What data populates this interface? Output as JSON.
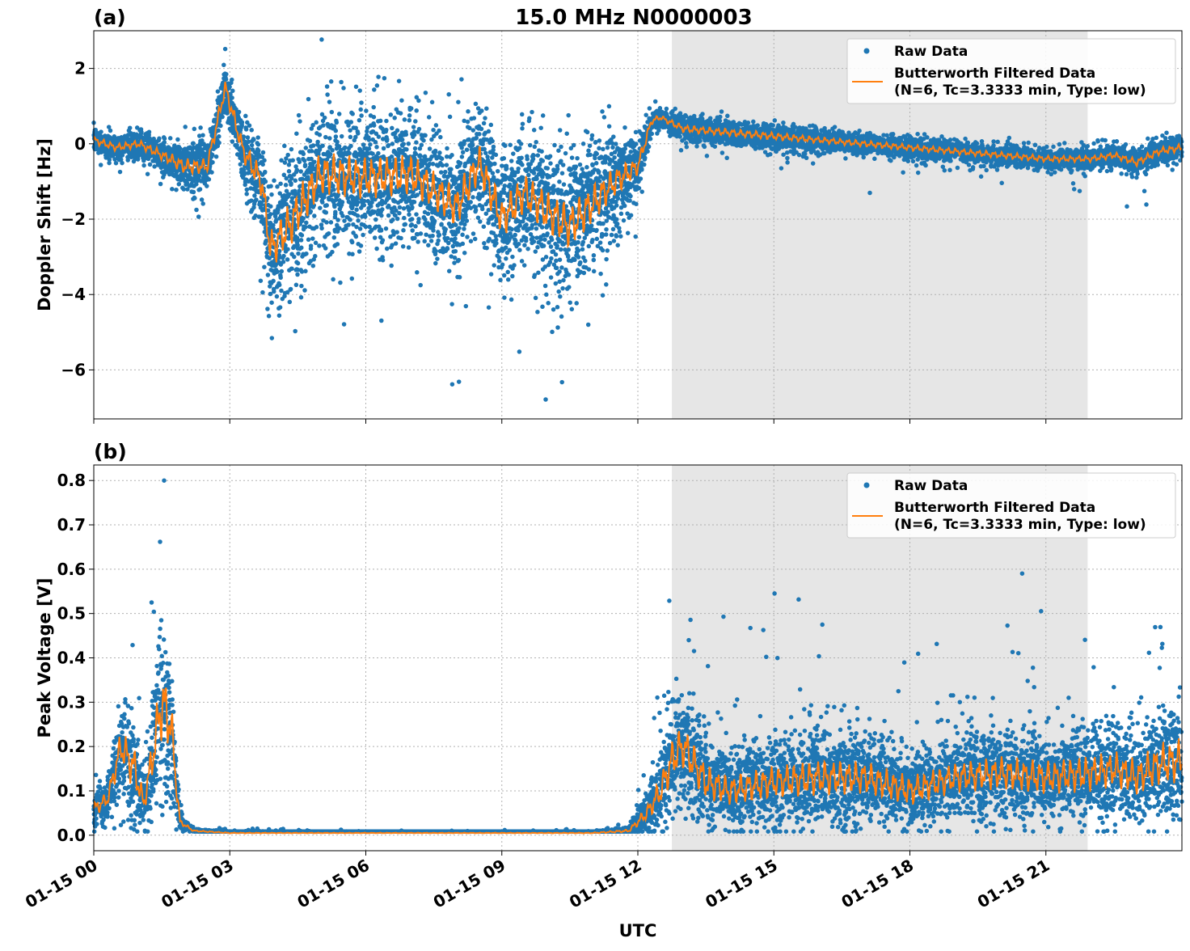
{
  "chart_data": [
    {
      "type": "scatter",
      "panel_label": "(a)",
      "title": "15.0 MHz N0000003",
      "xlabel": "",
      "ylabel": "Doppler Shift [Hz]",
      "ylim": [
        -7.3,
        3.0
      ],
      "yticks": [
        -6,
        -4,
        -2,
        0,
        2
      ],
      "ytick_labels": [
        "−6",
        "−4",
        "−2",
        "0",
        "2"
      ],
      "xlim": [
        0,
        24
      ],
      "shaded_region_hours": [
        12.75,
        21.92
      ],
      "grid": true,
      "legend_placement": "top-right",
      "series": [
        {
          "name": "Raw Data",
          "kind": "points",
          "color": "#1f77b4"
        },
        {
          "name": "Butterworth Filtered Data\n(N=6, Tc=3.3333 min, Type: low)",
          "kind": "line",
          "color": "#ff7f0e"
        }
      ],
      "legend": [
        "Raw Data",
        "Butterworth Filtered Data",
        "(N=6, Tc=3.3333 min, Type: low)"
      ],
      "envelope": {
        "hours": [
          0,
          0.5,
          1.0,
          1.5,
          2.0,
          2.5,
          2.9,
          3.3,
          3.7,
          3.9,
          4.3,
          5.0,
          6.0,
          7.0,
          8.0,
          8.5,
          9.0,
          9.5,
          10.0,
          10.5,
          11.0,
          11.5,
          12.0,
          12.3,
          12.5,
          13.0,
          14.0,
          15.0,
          16.0,
          17.0,
          18.0,
          19.0,
          20.0,
          21.0,
          22.0,
          22.5,
          23.0,
          23.5,
          24.0
        ],
        "center": [
          0.1,
          -0.1,
          0.0,
          -0.3,
          -0.6,
          -0.6,
          1.5,
          -0.2,
          -1.0,
          -2.8,
          -2.2,
          -0.8,
          -0.9,
          -0.8,
          -1.7,
          -0.5,
          -2.0,
          -1.3,
          -1.8,
          -2.2,
          -1.6,
          -1.0,
          -0.6,
          0.6,
          0.7,
          0.4,
          0.3,
          0.2,
          0.1,
          0.0,
          -0.1,
          -0.2,
          -0.3,
          -0.4,
          -0.4,
          -0.3,
          -0.5,
          -0.2,
          -0.1
        ],
        "spread": [
          0.3,
          0.3,
          0.3,
          0.4,
          0.6,
          0.6,
          0.6,
          0.8,
          1.2,
          1.5,
          1.8,
          1.7,
          1.7,
          1.6,
          1.6,
          1.5,
          1.6,
          1.6,
          1.7,
          1.8,
          1.6,
          1.2,
          0.7,
          0.3,
          0.2,
          0.3,
          0.3,
          0.3,
          0.25,
          0.25,
          0.25,
          0.25,
          0.25,
          0.25,
          0.25,
          0.25,
          0.3,
          0.3,
          0.3
        ]
      }
    },
    {
      "type": "scatter",
      "panel_label": "(b)",
      "title": "",
      "xlabel": "UTC",
      "ylabel": "Peak Voltage [V]",
      "ylim": [
        -0.035,
        0.835
      ],
      "yticks": [
        0.0,
        0.1,
        0.2,
        0.3,
        0.4,
        0.5,
        0.6,
        0.7,
        0.8
      ],
      "ytick_labels": [
        "0.0",
        "0.1",
        "0.2",
        "0.3",
        "0.4",
        "0.5",
        "0.6",
        "0.7",
        "0.8"
      ],
      "xlim": [
        0,
        24
      ],
      "xticks_hours": [
        0,
        3,
        6,
        9,
        12,
        15,
        18,
        21
      ],
      "xtick_labels": [
        "01-15 00",
        "01-15 03",
        "01-15 06",
        "01-15 09",
        "01-15 12",
        "01-15 15",
        "01-15 18",
        "01-15 21"
      ],
      "shaded_region_hours": [
        12.75,
        21.92
      ],
      "grid": true,
      "legend_placement": "top-right",
      "series": [
        {
          "name": "Raw Data",
          "kind": "points",
          "color": "#1f77b4"
        },
        {
          "name": "Butterworth Filtered Data\n(N=6, Tc=3.3333 min, Type: low)",
          "kind": "line",
          "color": "#ff7f0e"
        }
      ],
      "legend": [
        "Raw Data",
        "Butterworth Filtered Data",
        "(N=6, Tc=3.3333 min, Type: low)"
      ],
      "envelope": {
        "hours": [
          0,
          0.3,
          0.6,
          0.9,
          1.1,
          1.3,
          1.5,
          1.7,
          1.9,
          2.2,
          3.0,
          6.0,
          9.0,
          11.0,
          11.8,
          12.2,
          12.5,
          12.8,
          13.0,
          13.5,
          14.0,
          15.0,
          16.0,
          17.0,
          18.0,
          19.0,
          20.0,
          21.0,
          22.0,
          22.5,
          23.0,
          23.5,
          24.0
        ],
        "center": [
          0.06,
          0.08,
          0.2,
          0.15,
          0.07,
          0.18,
          0.3,
          0.25,
          0.03,
          0.01,
          0.005,
          0.005,
          0.005,
          0.005,
          0.01,
          0.05,
          0.1,
          0.18,
          0.2,
          0.12,
          0.1,
          0.12,
          0.13,
          0.13,
          0.1,
          0.13,
          0.14,
          0.13,
          0.14,
          0.15,
          0.13,
          0.16,
          0.17
        ],
        "spread": [
          0.05,
          0.05,
          0.12,
          0.15,
          0.06,
          0.15,
          0.25,
          0.2,
          0.02,
          0.005,
          0.003,
          0.002,
          0.002,
          0.003,
          0.01,
          0.05,
          0.1,
          0.15,
          0.15,
          0.12,
          0.1,
          0.11,
          0.12,
          0.11,
          0.1,
          0.1,
          0.11,
          0.11,
          0.12,
          0.12,
          0.12,
          0.14,
          0.15
        ]
      }
    }
  ]
}
